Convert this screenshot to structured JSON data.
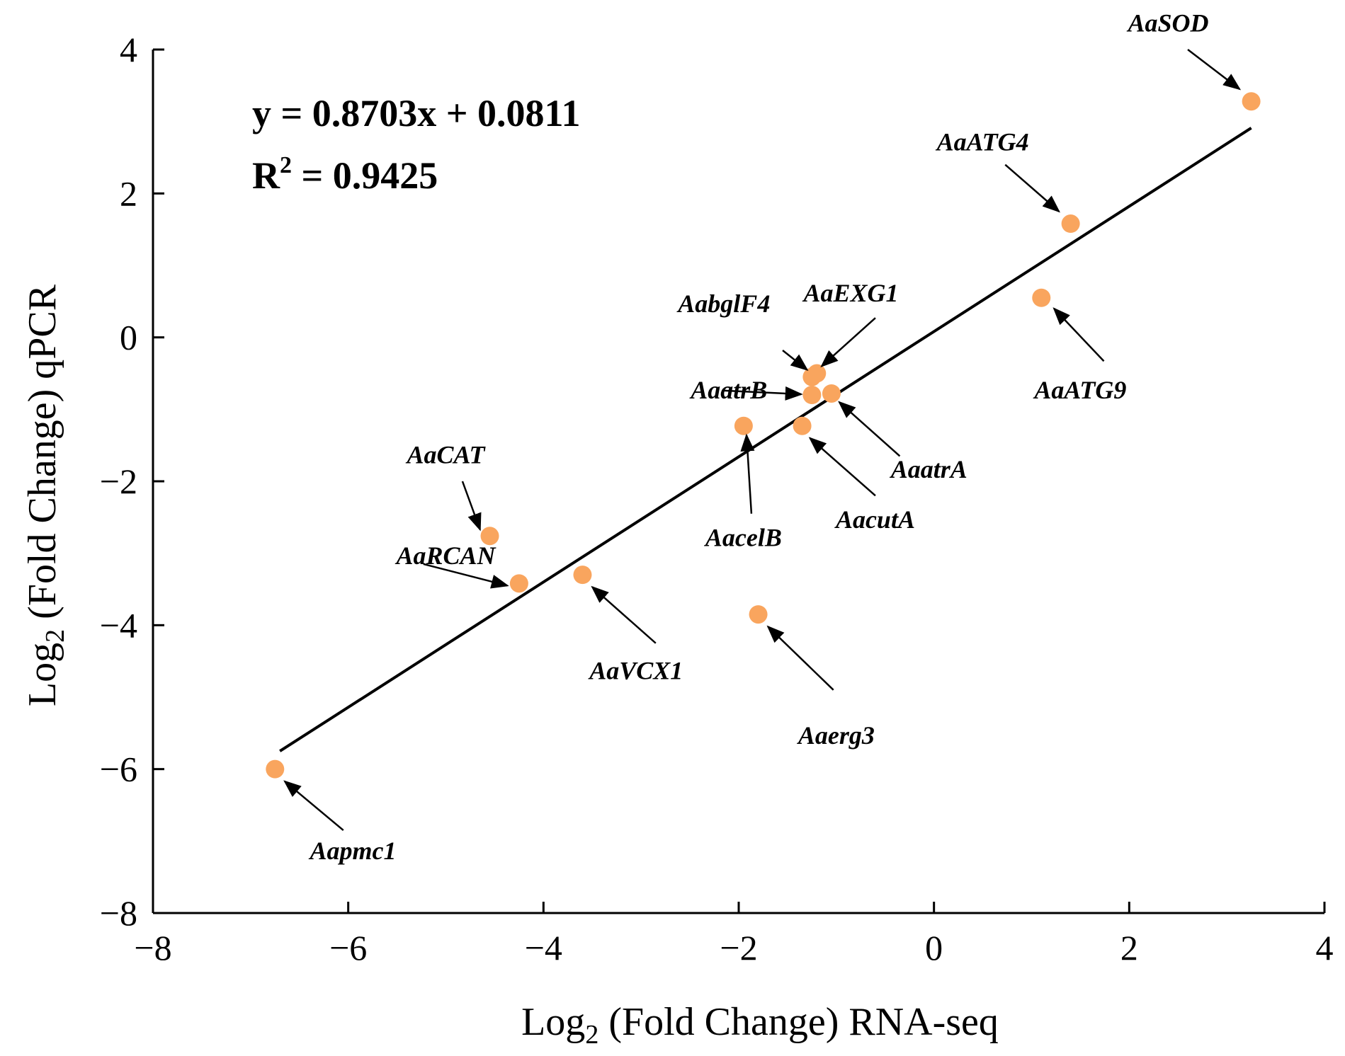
{
  "chart_data": {
    "type": "scatter",
    "xlabel": {
      "main": "Log",
      "sub": "2",
      "rest": " (Fold Change) RNA-seq"
    },
    "ylabel": {
      "main": "Log",
      "sub": "2",
      "rest": " (Fold Change) qPCR"
    },
    "xlim": [
      -8,
      4
    ],
    "ylim": [
      -8,
      4
    ],
    "xticks": [
      -8,
      -6,
      -4,
      -2,
      0,
      2,
      4
    ],
    "yticks": [
      -8,
      -6,
      -4,
      -2,
      0,
      2,
      4
    ],
    "xtick_labels": [
      "−8",
      "−6",
      "−4",
      "−2",
      "0",
      "2",
      "4"
    ],
    "ytick_labels": [
      "−8",
      "−6",
      "−4",
      "−2",
      "0",
      "2",
      "4"
    ],
    "grid": false,
    "marker_color": "#f9a55e",
    "fit": {
      "equation": "y = 0.8703x + 0.0811",
      "r2_prefix": "R",
      "r2_sup": "2",
      "r2_suffix": " = 0.9425",
      "slope": 0.8703,
      "intercept": 0.0811,
      "x_range": [
        -6.7,
        3.25
      ]
    },
    "points": [
      {
        "gene": "AaSOD",
        "x": 3.25,
        "y": 3.28
      },
      {
        "gene": "AaATG4",
        "x": 1.4,
        "y": 1.58
      },
      {
        "gene": "AaATG9",
        "x": 1.1,
        "y": 0.55
      },
      {
        "gene": "AaEXG1",
        "x": -1.2,
        "y": -0.5
      },
      {
        "gene": "AabglF4",
        "x": -1.25,
        "y": -0.55
      },
      {
        "gene": "AaatrB",
        "x": -1.25,
        "y": -0.8
      },
      {
        "gene": "AaatrA",
        "x": -1.05,
        "y": -0.78
      },
      {
        "gene": "AacelB",
        "x": -1.95,
        "y": -1.23
      },
      {
        "gene": "AacutA",
        "x": -1.35,
        "y": -1.23
      },
      {
        "gene": "AaCAT",
        "x": -4.55,
        "y": -2.76
      },
      {
        "gene": "AaRCAN",
        "x": -4.25,
        "y": -3.42
      },
      {
        "gene": "AaVCX1",
        "x": -3.6,
        "y": -3.3
      },
      {
        "gene": "Aaerg3",
        "x": -1.8,
        "y": -3.85
      },
      {
        "gene": "Aapmc1",
        "x": -6.75,
        "y": -6.0
      }
    ],
    "annotations": [
      {
        "text": "AaSOD",
        "text_at": [
          2.4,
          4.25
        ],
        "arrow_from": [
          2.6,
          4.0
        ],
        "arrow_to": [
          3.13,
          3.45
        ]
      },
      {
        "text": "AaATG4",
        "text_at": [
          0.5,
          2.6
        ],
        "arrow_from": [
          0.73,
          2.4
        ],
        "arrow_to": [
          1.28,
          1.75
        ]
      },
      {
        "text": "AaATG9",
        "text_at": [
          1.5,
          -0.85
        ],
        "arrow_from": [
          1.74,
          -0.33
        ],
        "arrow_to": [
          1.23,
          0.4
        ]
      },
      {
        "text": "AaEXG1",
        "text_at": [
          -0.85,
          0.5
        ],
        "arrow_from": [
          -0.6,
          0.27
        ],
        "arrow_to": [
          -1.15,
          -0.4
        ]
      },
      {
        "text": "AabglF4",
        "text_at": [
          -2.15,
          0.35
        ],
        "arrow_from": [
          -1.55,
          -0.18
        ],
        "arrow_to": [
          -1.3,
          -0.45
        ]
      },
      {
        "text": "AaatrB",
        "text_at": [
          -2.1,
          -0.85
        ],
        "arrow_from": [
          -2.15,
          -0.74
        ],
        "arrow_to": [
          -1.36,
          -0.79
        ]
      },
      {
        "text": "AaatrA",
        "text_at": [
          -0.05,
          -1.95
        ],
        "arrow_from": [
          -0.35,
          -1.65
        ],
        "arrow_to": [
          -0.97,
          -0.9
        ]
      },
      {
        "text": "AacelB",
        "text_at": [
          -1.95,
          -2.9
        ],
        "arrow_from": [
          -1.87,
          -2.45
        ],
        "arrow_to": [
          -1.92,
          -1.36
        ]
      },
      {
        "text": "AacutA",
        "text_at": [
          -0.6,
          -2.65
        ],
        "arrow_from": [
          -0.6,
          -2.2
        ],
        "arrow_to": [
          -1.27,
          -1.4
        ]
      },
      {
        "text": "AaCAT",
        "text_at": [
          -5.0,
          -1.75
        ],
        "arrow_from": [
          -4.83,
          -2.0
        ],
        "arrow_to": [
          -4.65,
          -2.67
        ]
      },
      {
        "text": "AaRCAN",
        "text_at": [
          -5.0,
          -3.15
        ],
        "arrow_from": [
          -5.23,
          -3.15
        ],
        "arrow_to": [
          -4.37,
          -3.45
        ]
      },
      {
        "text": "AaVCX1",
        "text_at": [
          -3.05,
          -4.75
        ],
        "arrow_from": [
          -2.85,
          -4.25
        ],
        "arrow_to": [
          -3.5,
          -3.47
        ]
      },
      {
        "text": "Aaerg3",
        "text_at": [
          -1.0,
          -5.65
        ],
        "arrow_from": [
          -1.03,
          -4.9
        ],
        "arrow_to": [
          -1.7,
          -4.02
        ]
      },
      {
        "text": "Aapmc1",
        "text_at": [
          -5.95,
          -7.25
        ],
        "arrow_from": [
          -6.05,
          -6.85
        ],
        "arrow_to": [
          -6.65,
          -6.17
        ]
      }
    ]
  }
}
